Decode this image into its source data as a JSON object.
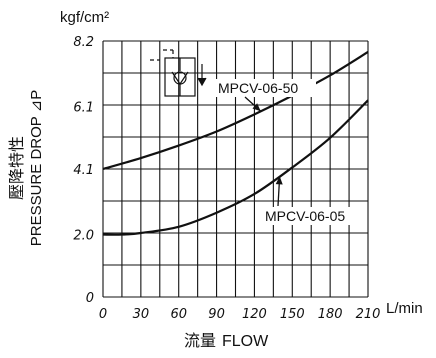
{
  "chart_data": {
    "type": "line",
    "unit_label": "kgf/cm²",
    "ylabel_cjk": "壓降特性",
    "ylabel_en": "PRESSURE DROP ⊿P",
    "xlabel_cjk": "流量",
    "xlabel_en": "FLOW",
    "x_unit": "L/min",
    "x_ticks": [
      "0",
      "30",
      "60",
      "90",
      "120",
      "150",
      "180",
      "210"
    ],
    "y_ticks": [
      "0",
      "2.0",
      "4.1",
      "6.1",
      "8.2"
    ],
    "xlim": [
      0,
      210
    ],
    "ylim": [
      0,
      8.2
    ],
    "grid": true,
    "series": [
      {
        "name": "MPCV-06-50",
        "x": [
          0,
          30,
          60,
          90,
          120,
          150,
          180,
          210
        ],
        "y": [
          4.1,
          4.45,
          4.85,
          5.3,
          5.85,
          6.45,
          7.1,
          7.85
        ]
      },
      {
        "name": "MPCV-06-05",
        "x": [
          0,
          15,
          30,
          60,
          90,
          120,
          150,
          180,
          210
        ],
        "y": [
          2.0,
          2.0,
          2.05,
          2.25,
          2.7,
          3.3,
          4.15,
          5.1,
          6.3
        ]
      }
    ],
    "annotations": [
      {
        "text": "MPCV-06-50",
        "series": 0,
        "at_x": 125
      },
      {
        "text": "MPCV-06-05",
        "series": 1,
        "at_x": 140
      }
    ]
  }
}
